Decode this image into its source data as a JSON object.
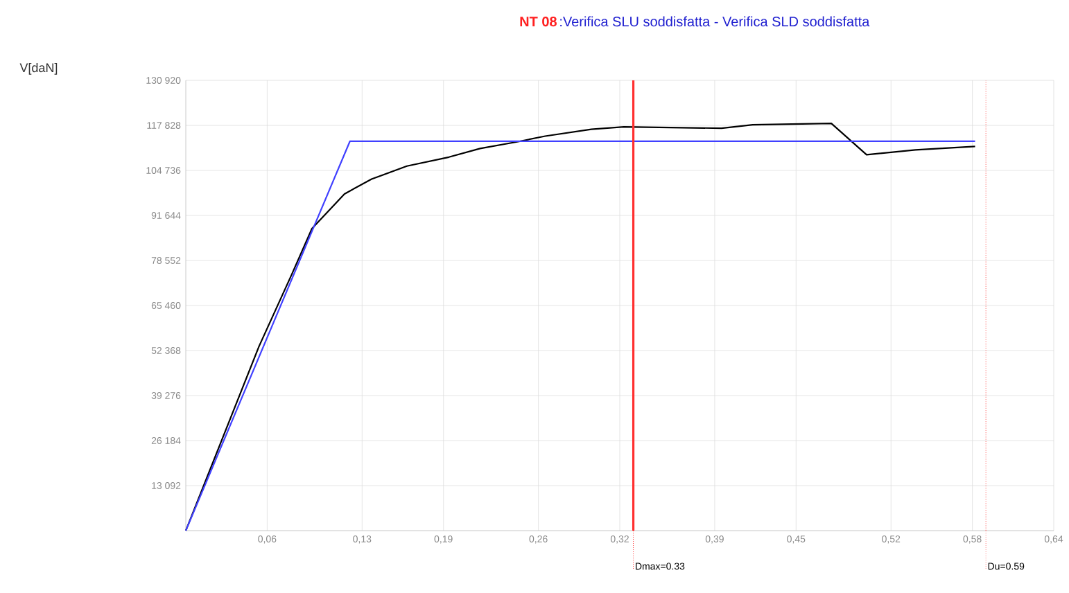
{
  "chart_data": {
    "type": "line",
    "title": "NT 08",
    "subtitle": ":Verifica SLU soddisfatta  -  Verifica SLD soddisfatta",
    "annotations": [
      "V[daN]"
    ],
    "series": [
      {
        "color": "#000000",
        "x": [
          0,
          0.054,
          0.078,
          0.093,
          0.117,
          0.137,
          0.163,
          0.194,
          0.217,
          0.245,
          0.265,
          0.299,
          0.323,
          0.395,
          0.418,
          0.476,
          0.502,
          0.538,
          0.582
        ],
        "values": [
          0,
          53600,
          74400,
          87800,
          97900,
          102200,
          106000,
          108600,
          111100,
          113100,
          114700,
          116700,
          117400,
          117000,
          118000,
          118400,
          109300,
          110700,
          111700
        ]
      },
      {
        "color": "#4040ff",
        "x": [
          0,
          0.121,
          0.582
        ],
        "values": [
          0,
          113200,
          113200
        ]
      }
    ],
    "xlim": [
      0,
      0.64
    ],
    "ylim": [
      0,
      130920
    ],
    "xticks": [
      {
        "value": 0.06,
        "label": "0,06"
      },
      {
        "value": 0.13,
        "label": "0,13"
      },
      {
        "value": 0.19,
        "label": "0,19"
      },
      {
        "value": 0.26,
        "label": "0,26"
      },
      {
        "value": 0.32,
        "label": "0,32"
      },
      {
        "value": 0.39,
        "label": "0,39"
      },
      {
        "value": 0.45,
        "label": "0,45"
      },
      {
        "value": 0.52,
        "label": "0,52"
      },
      {
        "value": 0.58,
        "label": "0,58"
      },
      {
        "value": 0.64,
        "label": "0,64"
      }
    ],
    "yticks": [
      {
        "value": 13092,
        "label": "13 092"
      },
      {
        "value": 26184,
        "label": "26 184"
      },
      {
        "value": 39276,
        "label": "39 276"
      },
      {
        "value": 52368,
        "label": "52 368"
      },
      {
        "value": 65460,
        "label": "65 460"
      },
      {
        "value": 78552,
        "label": "78 552"
      },
      {
        "value": 91644,
        "label": "91 644"
      },
      {
        "value": 104736,
        "label": "104 736"
      },
      {
        "value": 117828,
        "label": "117 828"
      },
      {
        "value": 130920,
        "label": "130 920"
      }
    ],
    "ref_lines": [
      {
        "axis": "x",
        "value": 0.33,
        "label": "Dmax=0.33",
        "color": "#ff3030",
        "line_style": "solid"
      },
      {
        "axis": "x",
        "value": 0.59,
        "label": "Du=0.59",
        "color": "#ff8080",
        "line_style": "dotted"
      }
    ],
    "grid": true,
    "marker": "none",
    "line_style": "solid"
  }
}
